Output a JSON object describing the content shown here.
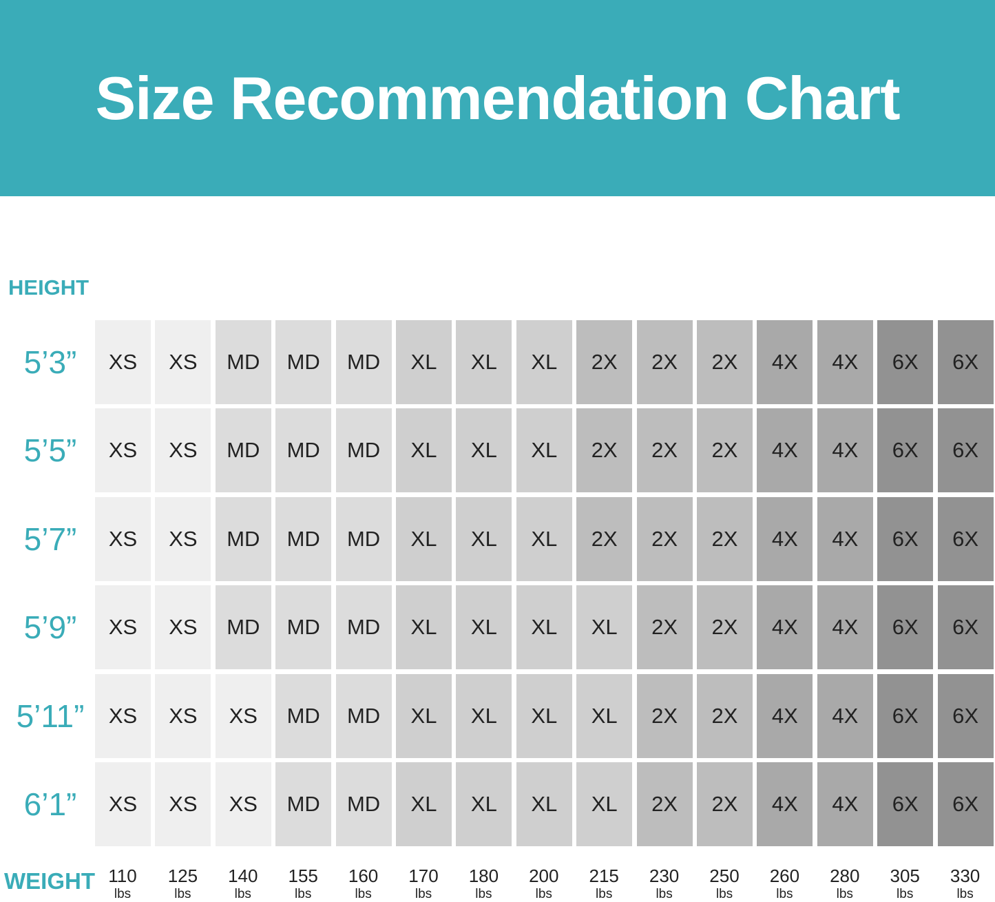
{
  "header": {
    "title": "Size Recommendation Chart"
  },
  "height_label": "HEIGHT",
  "weight_label": "WEIGHT",
  "weight_unit": "lbs",
  "size_colors": {
    "XS": "#efefef",
    "MD": "#dcdcdc",
    "XL": "#cfcfcf",
    "2X": "#bdbdbd",
    "4X": "#a9a9a9",
    "6X": "#929292"
  },
  "weights": [
    "110",
    "125",
    "140",
    "155",
    "160",
    "170",
    "180",
    "200",
    "215",
    "230",
    "250",
    "260",
    "280",
    "305",
    "330"
  ],
  "rows": [
    {
      "height": "5’3”",
      "sizes": [
        "XS",
        "XS",
        "MD",
        "MD",
        "MD",
        "XL",
        "XL",
        "XL",
        "2X",
        "2X",
        "2X",
        "4X",
        "4X",
        "6X",
        "6X"
      ]
    },
    {
      "height": "5’5”",
      "sizes": [
        "XS",
        "XS",
        "MD",
        "MD",
        "MD",
        "XL",
        "XL",
        "XL",
        "2X",
        "2X",
        "2X",
        "4X",
        "4X",
        "6X",
        "6X"
      ]
    },
    {
      "height": "5’7”",
      "sizes": [
        "XS",
        "XS",
        "MD",
        "MD",
        "MD",
        "XL",
        "XL",
        "XL",
        "2X",
        "2X",
        "2X",
        "4X",
        "4X",
        "6X",
        "6X"
      ]
    },
    {
      "height": "5’9”",
      "sizes": [
        "XS",
        "XS",
        "MD",
        "MD",
        "MD",
        "XL",
        "XL",
        "XL",
        "XL",
        "2X",
        "2X",
        "4X",
        "4X",
        "6X",
        "6X"
      ]
    },
    {
      "height": "5’11”",
      "sizes": [
        "XS",
        "XS",
        "XS",
        "MD",
        "MD",
        "XL",
        "XL",
        "XL",
        "XL",
        "2X",
        "2X",
        "4X",
        "4X",
        "6X",
        "6X"
      ]
    },
    {
      "height": "6’1”",
      "sizes": [
        "XS",
        "XS",
        "XS",
        "MD",
        "MD",
        "XL",
        "XL",
        "XL",
        "XL",
        "2X",
        "2X",
        "4X",
        "4X",
        "6X",
        "6X"
      ]
    }
  ]
}
